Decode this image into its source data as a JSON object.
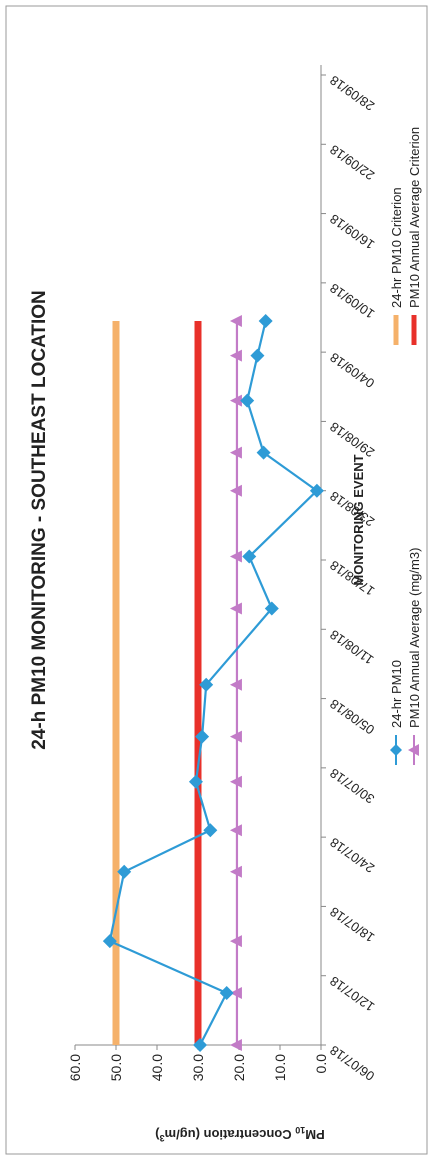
{
  "chart_data": {
    "type": "line",
    "title": "24-h PM10 MONITORING - SOUTHEAST LOCATION",
    "xlabel": "MONITORING EVENT",
    "ylabel_main": "PM",
    "ylabel_sub": "10",
    "ylabel_rest": " Concentration (ug/m",
    "ylabel_sup": "3",
    "ylabel_end": ")",
    "ylim": [
      0,
      60
    ],
    "yticks": [
      "0.0",
      "10.0",
      "20.0",
      "30.0",
      "40.0",
      "50.0",
      "60.0"
    ],
    "grid": false,
    "legend_position": "bottom",
    "categories": [
      "06/07/18",
      "12/07/18",
      "18/07/18",
      "24/07/18",
      "30/07/18",
      "05/08/18",
      "11/08/18",
      "17/08/18",
      "23/08/18",
      "29/08/18",
      "04/09/18",
      "10/09/18",
      "16/09/18",
      "22/09/18",
      "28/09/18"
    ],
    "series": [
      {
        "name": "24-hr PM10",
        "color": "#2e9bd6",
        "marker": "diamond",
        "x": [
          0,
          0.75,
          1.5,
          2.5,
          3.1,
          3.8,
          4.45,
          5.2,
          6.3,
          7.05,
          8.0,
          8.55,
          9.3,
          9.95,
          10.45
        ],
        "values": [
          29.5,
          23.0,
          51.5,
          48.0,
          27.0,
          30.5,
          29.0,
          28.0,
          12.0,
          17.5,
          1.0,
          14.0,
          18.0,
          15.5,
          13.5
        ]
      },
      {
        "name": "PM10 Annual Average (mg/m3)",
        "color": "#c27bc7",
        "marker": "triangle",
        "x": [
          0,
          0.75,
          1.5,
          2.5,
          3.1,
          3.8,
          4.45,
          5.2,
          6.3,
          7.05,
          8.0,
          8.55,
          9.3,
          9.95,
          10.45
        ],
        "values": [
          20.5,
          20.5,
          20.5,
          20.5,
          20.5,
          20.5,
          20.5,
          20.5,
          20.5,
          20.5,
          20.5,
          20.5,
          20.5,
          20.5,
          20.5
        ]
      },
      {
        "name": "24-hr PM10 Criterion",
        "color": "#f5b16a",
        "marker": "none",
        "x": [
          0,
          10.45
        ],
        "values": [
          50,
          50
        ]
      },
      {
        "name": "PM10 Annual Average Criterion",
        "color": "#e8302a",
        "marker": "none",
        "x": [
          0,
          10.45
        ],
        "values": [
          30,
          30
        ]
      }
    ]
  },
  "legend": {
    "item1": "24-hr PM10",
    "item2": "PM10 Annual Average (mg/m3)",
    "item3": "24-hr PM10 Criterion",
    "item4": "PM10 Annual Average Criterion"
  }
}
